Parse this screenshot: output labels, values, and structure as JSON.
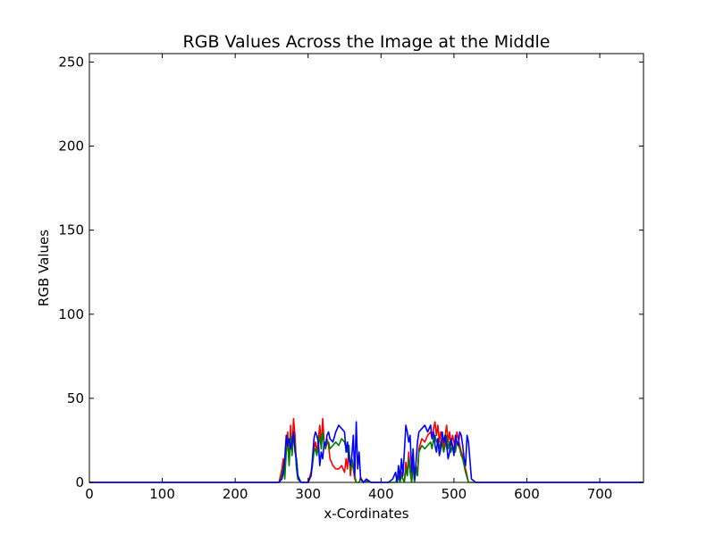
{
  "chart_data": {
    "type": "line",
    "title": "RGB Values Across the Image at the Middle",
    "xlabel": "x-Cordinates",
    "ylabel": "RGB Values",
    "xlim": [
      0,
      760
    ],
    "ylim": [
      0,
      255
    ],
    "xticks": [
      0,
      100,
      200,
      300,
      400,
      500,
      600,
      700
    ],
    "yticks": [
      0,
      50,
      100,
      150,
      200,
      250
    ],
    "grid": false,
    "legend": "none",
    "x": [
      0,
      260,
      264,
      266,
      268,
      270,
      272,
      274,
      276,
      278,
      280,
      282,
      284,
      286,
      290,
      300,
      304,
      306,
      308,
      310,
      312,
      314,
      316,
      318,
      320,
      322,
      324,
      326,
      328,
      330,
      334,
      338,
      342,
      346,
      350,
      352,
      354,
      356,
      358,
      360,
      362,
      364,
      366,
      368,
      370,
      372,
      376,
      380,
      386,
      392,
      400,
      410,
      416,
      420,
      422,
      424,
      426,
      428,
      430,
      432,
      434,
      436,
      438,
      440,
      442,
      444,
      446,
      448,
      450,
      452,
      456,
      460,
      464,
      468,
      470,
      472,
      474,
      476,
      478,
      480,
      482,
      484,
      486,
      488,
      490,
      492,
      494,
      496,
      498,
      500,
      502,
      504,
      506,
      508,
      510,
      512,
      514,
      516,
      518,
      520,
      524,
      530,
      760
    ],
    "series": [
      {
        "color": "#ff0000",
        "values": [
          0,
          0,
          8,
          14,
          4,
          22,
          30,
          12,
          34,
          18,
          38,
          28,
          10,
          2,
          0,
          0,
          6,
          12,
          20,
          24,
          18,
          26,
          34,
          22,
          38,
          24,
          20,
          26,
          22,
          14,
          10,
          8,
          8,
          10,
          6,
          14,
          8,
          22,
          4,
          12,
          8,
          2,
          0,
          0,
          0,
          3,
          0,
          2,
          0,
          0,
          0,
          0,
          0,
          0,
          2,
          4,
          0,
          6,
          2,
          0,
          12,
          4,
          18,
          8,
          0,
          14,
          0,
          10,
          4,
          20,
          26,
          24,
          28,
          30,
          26,
          32,
          36,
          28,
          34,
          24,
          30,
          26,
          20,
          28,
          34,
          24,
          30,
          22,
          28,
          24,
          20,
          30,
          26,
          22,
          18,
          16,
          12,
          8,
          4,
          0,
          0,
          0,
          0
        ]
      },
      {
        "color": "#007f00",
        "values": [
          0,
          0,
          4,
          10,
          2,
          18,
          24,
          10,
          28,
          16,
          30,
          22,
          8,
          2,
          0,
          0,
          4,
          10,
          18,
          20,
          16,
          22,
          28,
          20,
          30,
          22,
          20,
          24,
          24,
          20,
          22,
          24,
          22,
          26,
          24,
          20,
          18,
          22,
          6,
          14,
          10,
          4,
          0,
          0,
          0,
          2,
          0,
          1,
          0,
          0,
          0,
          0,
          0,
          0,
          1,
          3,
          0,
          4,
          2,
          0,
          8,
          4,
          14,
          6,
          0,
          10,
          0,
          8,
          4,
          18,
          22,
          20,
          22,
          24,
          20,
          26,
          28,
          24,
          26,
          20,
          24,
          22,
          18,
          22,
          28,
          20,
          24,
          18,
          22,
          20,
          18,
          24,
          22,
          20,
          16,
          14,
          10,
          6,
          3,
          0,
          0,
          0,
          0
        ]
      },
      {
        "color": "#0000ff",
        "values": [
          0,
          0,
          2,
          6,
          14,
          28,
          22,
          26,
          20,
          24,
          30,
          18,
          14,
          4,
          0,
          0,
          4,
          14,
          26,
          30,
          28,
          24,
          10,
          18,
          14,
          24,
          22,
          28,
          30,
          26,
          24,
          30,
          34,
          32,
          30,
          18,
          24,
          14,
          10,
          16,
          28,
          4,
          36,
          8,
          18,
          2,
          0,
          2,
          0,
          0,
          0,
          0,
          2,
          6,
          0,
          10,
          2,
          14,
          4,
          18,
          34,
          30,
          24,
          28,
          6,
          20,
          2,
          12,
          24,
          30,
          32,
          34,
          30,
          34,
          26,
          30,
          22,
          18,
          26,
          16,
          20,
          30,
          24,
          28,
          22,
          14,
          18,
          26,
          22,
          16,
          28,
          24,
          22,
          30,
          28,
          22,
          14,
          10,
          28,
          24,
          2,
          0,
          0
        ]
      }
    ]
  }
}
